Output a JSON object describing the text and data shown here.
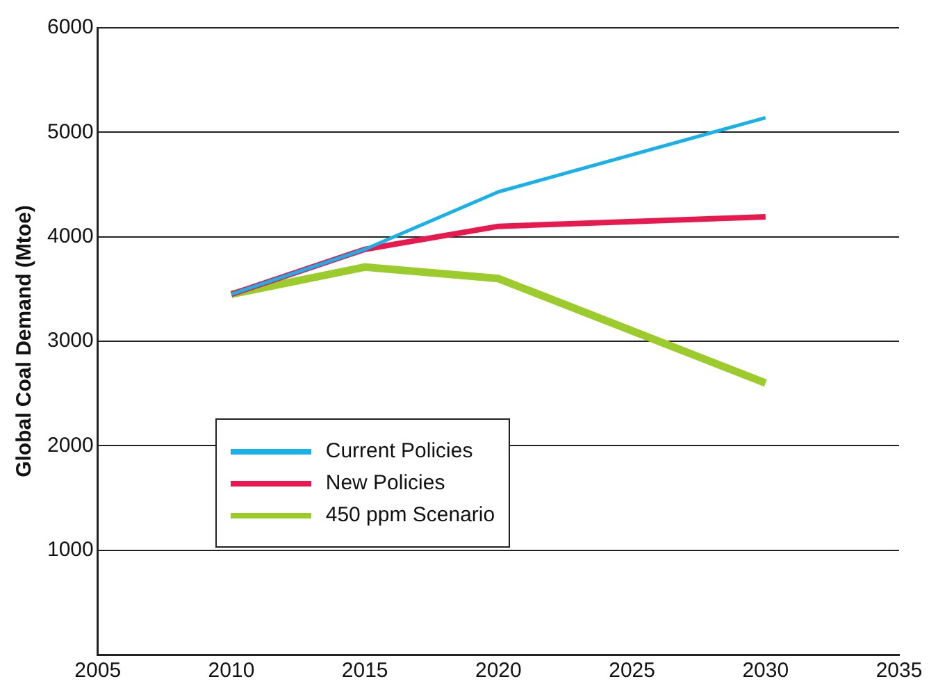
{
  "chart_data": {
    "type": "line",
    "ylabel": "Global Coal Demand (Mtoe)",
    "x": [
      2010,
      2015,
      2020,
      2030
    ],
    "series": [
      {
        "name": "Current Policies",
        "color": "#1ab0e8",
        "values": [
          3450,
          3880,
          4430,
          5140
        ]
      },
      {
        "name": "New Policies",
        "color": "#e8194f",
        "values": [
          3450,
          3880,
          4100,
          4190
        ]
      },
      {
        "name": "450 ppm Scenario",
        "color": "#9ccc2c",
        "values": [
          3450,
          3710,
          3600,
          2600
        ]
      }
    ],
    "xlim": [
      2005,
      2035
    ],
    "xticks": [
      2005,
      2010,
      2015,
      2020,
      2025,
      2030,
      2035
    ],
    "ylim": [
      0,
      6000
    ],
    "yticks": [
      1000,
      2000,
      3000,
      4000,
      5000,
      6000
    ],
    "grid": "y",
    "legend": "bottom left",
    "marker": "none",
    "line_style": "solid"
  }
}
